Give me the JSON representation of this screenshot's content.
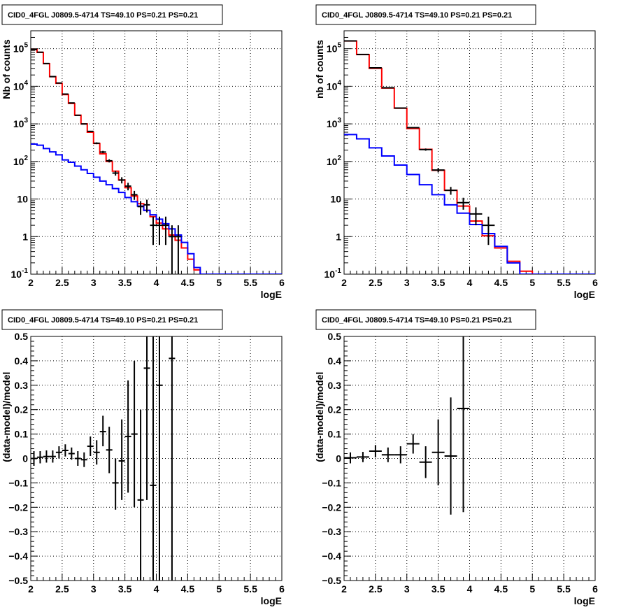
{
  "panels": [
    {
      "title": "CID0_4FGL J0809.5-4714 TS=49.10 PS=0.21 PS=0.21",
      "xlabel": "logE",
      "ylabel": "Nb of counts"
    },
    {
      "title": "CID0_4FGL J0809.5-4714 TS=49.10 PS=0.21 PS=0.21",
      "xlabel": "logE",
      "ylabel": "nb of counts"
    },
    {
      "title": "CID0_4FGL J0809.5-4714 TS=49.10 PS=0.21 PS=0.21",
      "xlabel": "logE",
      "ylabel": "(data-model)/model"
    },
    {
      "title": "CID0_4FGL J0809.5-4714 TS=49.10 PS=0.21 PS=0.21",
      "xlabel": "logE",
      "ylabel": "(data-model)/model"
    }
  ],
  "colors": {
    "total_model": "#ff0000",
    "background_model": "#0000ff",
    "data": "#000000",
    "grid": "#000000"
  },
  "chart_data": [
    {
      "type": "line",
      "subtype": "step-histogram-with-errorbars",
      "title": "CID0_4FGL J0809.5-4714 TS=49.10 PS=0.21 PS=0.21",
      "xlabel": "logE",
      "ylabel": "Nb of counts",
      "xlim": [
        2,
        6
      ],
      "ylim": [
        0.1,
        300000
      ],
      "yscale": "log",
      "grid": true,
      "x_ticks": [
        "2",
        "2.5",
        "3",
        "3.5",
        "4",
        "4.5",
        "5",
        "5.5",
        "6"
      ],
      "y_ticks": [
        "10^-1",
        "1",
        "10",
        "10^2",
        "10^3",
        "10^4",
        "10^5"
      ],
      "bin_edges": [
        2.0,
        2.1,
        2.2,
        2.3,
        2.4,
        2.5,
        2.6,
        2.7,
        2.8,
        2.9,
        3.0,
        3.1,
        3.2,
        3.3,
        3.4,
        3.5,
        3.6,
        3.7,
        3.8,
        3.9,
        4.0,
        4.1,
        4.2,
        4.3,
        4.4,
        4.5,
        4.6,
        4.7,
        4.8,
        4.9,
        5.0,
        5.1,
        5.2,
        5.3,
        5.4,
        5.5,
        5.6,
        5.7,
        5.8,
        5.9,
        6.0
      ],
      "series": [
        {
          "kind": "step",
          "color": "#ff0000",
          "values": [
            95000,
            80000,
            40000,
            18000,
            12000,
            6000,
            3500,
            1700,
            1000,
            600,
            300,
            160,
            100,
            55,
            32,
            20,
            12,
            7.5,
            5,
            3.4,
            2.3,
            1.6,
            1.1,
            0.8,
            0.5,
            0.25,
            0.13,
            0.1,
            0.1,
            0.1,
            0.1,
            0.1,
            0.1,
            0.1,
            0.1,
            0.1,
            0.1,
            0.1,
            0.1,
            0.1
          ]
        },
        {
          "kind": "step",
          "color": "#0000ff",
          "values": [
            290,
            270,
            220,
            180,
            150,
            110,
            95,
            75,
            60,
            48,
            38,
            30,
            24,
            19,
            15,
            11,
            8.5,
            6.5,
            5,
            3.8,
            2.9,
            2.2,
            1.6,
            1.1,
            0.7,
            0.35,
            0.15,
            0.1,
            0.1,
            0.1,
            0.1,
            0.1,
            0.1,
            0.1,
            0.1,
            0.1,
            0.1,
            0.1,
            0.1,
            0.1
          ]
        },
        {
          "kind": "errorbar",
          "color": "#000000",
          "points": [
            {
              "x": 2.05,
              "y": 95000,
              "lo": 94700,
              "hi": 95300
            },
            {
              "x": 2.15,
              "y": 80500,
              "lo": 80200,
              "hi": 80800
            },
            {
              "x": 2.25,
              "y": 40300,
              "lo": 40100,
              "hi": 40500
            },
            {
              "x": 2.35,
              "y": 18100,
              "lo": 17950,
              "hi": 18250
            },
            {
              "x": 2.45,
              "y": 12200,
              "lo": 12090,
              "hi": 12310
            },
            {
              "x": 2.55,
              "y": 6200,
              "lo": 6120,
              "hi": 6280
            },
            {
              "x": 2.65,
              "y": 3600,
              "lo": 3540,
              "hi": 3660
            },
            {
              "x": 2.75,
              "y": 1690,
              "lo": 1650,
              "hi": 1730
            },
            {
              "x": 2.85,
              "y": 995,
              "lo": 963,
              "hi": 1027
            },
            {
              "x": 2.95,
              "y": 630,
              "lo": 605,
              "hi": 655
            },
            {
              "x": 3.05,
              "y": 305,
              "lo": 288,
              "hi": 322
            },
            {
              "x": 3.15,
              "y": 178,
              "lo": 165,
              "hi": 191
            },
            {
              "x": 3.25,
              "y": 104,
              "lo": 94,
              "hi": 114
            },
            {
              "x": 3.35,
              "y": 49,
              "lo": 42,
              "hi": 56
            },
            {
              "x": 3.45,
              "y": 32,
              "lo": 26,
              "hi": 38
            },
            {
              "x": 3.55,
              "y": 22,
              "lo": 17,
              "hi": 27
            },
            {
              "x": 3.65,
              "y": 13,
              "lo": 9.5,
              "hi": 16.5
            },
            {
              "x": 3.75,
              "y": 6.3,
              "lo": 3.8,
              "hi": 8.8
            },
            {
              "x": 3.85,
              "y": 7,
              "lo": 4.4,
              "hi": 9.6
            },
            {
              "x": 3.95,
              "y": 2,
              "lo": 0.6,
              "hi": 3.4
            },
            {
              "x": 4.05,
              "y": 2,
              "lo": 0.6,
              "hi": 3.4
            },
            {
              "x": 4.15,
              "y": 2,
              "lo": 0.6,
              "hi": 3.4
            },
            {
              "x": 4.25,
              "y": 1,
              "lo": 0.1,
              "hi": 2
            },
            {
              "x": 4.35,
              "y": 1,
              "lo": 0.1,
              "hi": 2
            }
          ]
        }
      ]
    },
    {
      "type": "line",
      "subtype": "step-histogram-with-errorbars",
      "title": "CID0_4FGL J0809.5-4714 TS=49.10 PS=0.21 PS=0.21",
      "xlabel": "logE",
      "ylabel": "nb of counts",
      "xlim": [
        2,
        6
      ],
      "ylim": [
        0.1,
        300000
      ],
      "yscale": "log",
      "grid": true,
      "x_ticks": [
        "2",
        "2.5",
        "3",
        "3.5",
        "4",
        "4.5",
        "5",
        "5.5",
        "6"
      ],
      "y_ticks": [
        "10^-1",
        "1",
        "10",
        "10^2",
        "10^3",
        "10^4",
        "10^5"
      ],
      "bin_edges": [
        2.0,
        2.2,
        2.4,
        2.6,
        2.8,
        3.0,
        3.2,
        3.4,
        3.6,
        3.8,
        4.0,
        4.2,
        4.4,
        4.6,
        4.8,
        5.0,
        5.2,
        5.4,
        5.6,
        5.8,
        6.0
      ],
      "series": [
        {
          "kind": "step",
          "color": "#ff0000",
          "values": [
            160000,
            70000,
            30000,
            9000,
            2600,
            750,
            210,
            58,
            17,
            6.5,
            2.6,
            1.05,
            0.5,
            0.22,
            0.12,
            0.1,
            0.1,
            0.1,
            0.1,
            0.1
          ]
        },
        {
          "kind": "step",
          "color": "#0000ff",
          "values": [
            520,
            400,
            230,
            140,
            80,
            45,
            24,
            13,
            7,
            4.2,
            2.1,
            1.2,
            0.55,
            0.2,
            0.1,
            0.1,
            0.1,
            0.1,
            0.1,
            0.1
          ]
        },
        {
          "kind": "errorbar",
          "color": "#000000",
          "points": [
            {
              "x": 2.1,
              "y": 161000,
              "lo": 160600,
              "hi": 161400
            },
            {
              "x": 2.3,
              "y": 70400,
              "lo": 70130,
              "hi": 70670
            },
            {
              "x": 2.5,
              "y": 31000,
              "lo": 30820,
              "hi": 31180
            },
            {
              "x": 2.7,
              "y": 9140,
              "lo": 9045,
              "hi": 9235
            },
            {
              "x": 2.9,
              "y": 2640,
              "lo": 2589,
              "hi": 2691
            },
            {
              "x": 3.1,
              "y": 795,
              "lo": 767,
              "hi": 823
            },
            {
              "x": 3.3,
              "y": 207,
              "lo": 193,
              "hi": 221
            },
            {
              "x": 3.5,
              "y": 59,
              "lo": 51,
              "hi": 67
            },
            {
              "x": 3.7,
              "y": 17,
              "lo": 13,
              "hi": 21
            },
            {
              "x": 3.9,
              "y": 8,
              "lo": 5.2,
              "hi": 10.8
            },
            {
              "x": 4.1,
              "y": 4,
              "lo": 2,
              "hi": 6
            },
            {
              "x": 4.3,
              "y": 2,
              "lo": 0.6,
              "hi": 3.4
            }
          ]
        }
      ]
    },
    {
      "type": "scatter",
      "subtype": "errorbars",
      "title": "CID0_4FGL J0809.5-4714 TS=49.10 PS=0.21 PS=0.21",
      "xlabel": "logE",
      "ylabel": "(data-model)/model",
      "xlim": [
        2,
        6
      ],
      "ylim": [
        -0.5,
        0.5
      ],
      "grid": true,
      "x_ticks": [
        "2",
        "2.5",
        "3",
        "3.5",
        "4",
        "4.5",
        "5",
        "5.5",
        "6"
      ],
      "y_ticks": [
        "-0.5",
        "-0.4",
        "-0.3",
        "-0.2",
        "-0.1",
        "0",
        "0.1",
        "0.2",
        "0.3",
        "0.4",
        "0.5"
      ],
      "series": [
        {
          "kind": "errorbar",
          "color": "#000000",
          "points": [
            {
              "x": 2.05,
              "y": 0.0,
              "lo": -0.03,
              "hi": 0.03
            },
            {
              "x": 2.15,
              "y": 0.005,
              "lo": -0.02,
              "hi": 0.03
            },
            {
              "x": 2.25,
              "y": 0.008,
              "lo": -0.017,
              "hi": 0.033
            },
            {
              "x": 2.35,
              "y": 0.008,
              "lo": -0.017,
              "hi": 0.033
            },
            {
              "x": 2.45,
              "y": 0.025,
              "lo": 0.0,
              "hi": 0.05
            },
            {
              "x": 2.55,
              "y": 0.033,
              "lo": 0.008,
              "hi": 0.058
            },
            {
              "x": 2.65,
              "y": 0.02,
              "lo": -0.005,
              "hi": 0.045
            },
            {
              "x": 2.75,
              "y": 0.0,
              "lo": -0.03,
              "hi": 0.03
            },
            {
              "x": 2.85,
              "y": -0.005,
              "lo": -0.035,
              "hi": 0.025
            },
            {
              "x": 2.95,
              "y": 0.05,
              "lo": 0.01,
              "hi": 0.09
            },
            {
              "x": 3.05,
              "y": 0.025,
              "lo": -0.025,
              "hi": 0.075
            },
            {
              "x": 3.15,
              "y": 0.11,
              "lo": 0.05,
              "hi": 0.175
            },
            {
              "x": 3.25,
              "y": 0.035,
              "lo": -0.06,
              "hi": 0.13
            },
            {
              "x": 3.35,
              "y": -0.1,
              "lo": -0.21,
              "hi": 0.0
            },
            {
              "x": 3.45,
              "y": -0.01,
              "lo": -0.17,
              "hi": 0.16
            },
            {
              "x": 3.55,
              "y": 0.09,
              "lo": -0.14,
              "hi": 0.32
            },
            {
              "x": 3.65,
              "y": 0.1,
              "lo": -0.2,
              "hi": 0.4
            },
            {
              "x": 3.75,
              "y": -0.17,
              "lo": -0.5,
              "hi": 0.2
            },
            {
              "x": 3.85,
              "y": 0.37,
              "lo": -0.17,
              "hi": 0.5
            },
            {
              "x": 3.95,
              "y": -0.11,
              "lo": -0.5,
              "hi": 0.5
            },
            {
              "x": 4.05,
              "y": 0.3,
              "lo": -0.5,
              "hi": 0.5
            },
            {
              "x": 4.25,
              "y": 0.41,
              "lo": -0.5,
              "hi": 0.5
            }
          ]
        }
      ]
    },
    {
      "type": "scatter",
      "subtype": "errorbars",
      "title": "CID0_4FGL J0809.5-4714 TS=49.10 PS=0.21 PS=0.21",
      "xlabel": "logE",
      "ylabel": "(data-model)/model",
      "xlim": [
        2,
        6
      ],
      "ylim": [
        -0.5,
        0.5
      ],
      "grid": true,
      "x_ticks": [
        "2",
        "2.5",
        "3",
        "3.5",
        "4",
        "4.5",
        "5",
        "5.5",
        "6"
      ],
      "y_ticks": [
        "-0.5",
        "-0.4",
        "-0.3",
        "-0.2",
        "-0.1",
        "0",
        "0.1",
        "0.2",
        "0.3",
        "0.4",
        "0.5"
      ],
      "series": [
        {
          "kind": "errorbar",
          "color": "#000000",
          "points": [
            {
              "x": 2.1,
              "y": 0.003,
              "lo": -0.02,
              "hi": 0.025
            },
            {
              "x": 2.3,
              "y": 0.006,
              "lo": -0.015,
              "hi": 0.027
            },
            {
              "x": 2.5,
              "y": 0.03,
              "lo": 0.005,
              "hi": 0.055
            },
            {
              "x": 2.7,
              "y": 0.015,
              "lo": -0.015,
              "hi": 0.045
            },
            {
              "x": 2.9,
              "y": 0.015,
              "lo": -0.02,
              "hi": 0.05
            },
            {
              "x": 3.1,
              "y": 0.06,
              "lo": 0.02,
              "hi": 0.1
            },
            {
              "x": 3.3,
              "y": -0.015,
              "lo": -0.08,
              "hi": 0.05
            },
            {
              "x": 3.5,
              "y": 0.025,
              "lo": -0.11,
              "hi": 0.16
            },
            {
              "x": 3.7,
              "y": 0.01,
              "lo": -0.23,
              "hi": 0.25
            },
            {
              "x": 3.9,
              "y": 0.205,
              "lo": -0.22,
              "hi": 0.5
            }
          ]
        }
      ]
    }
  ]
}
